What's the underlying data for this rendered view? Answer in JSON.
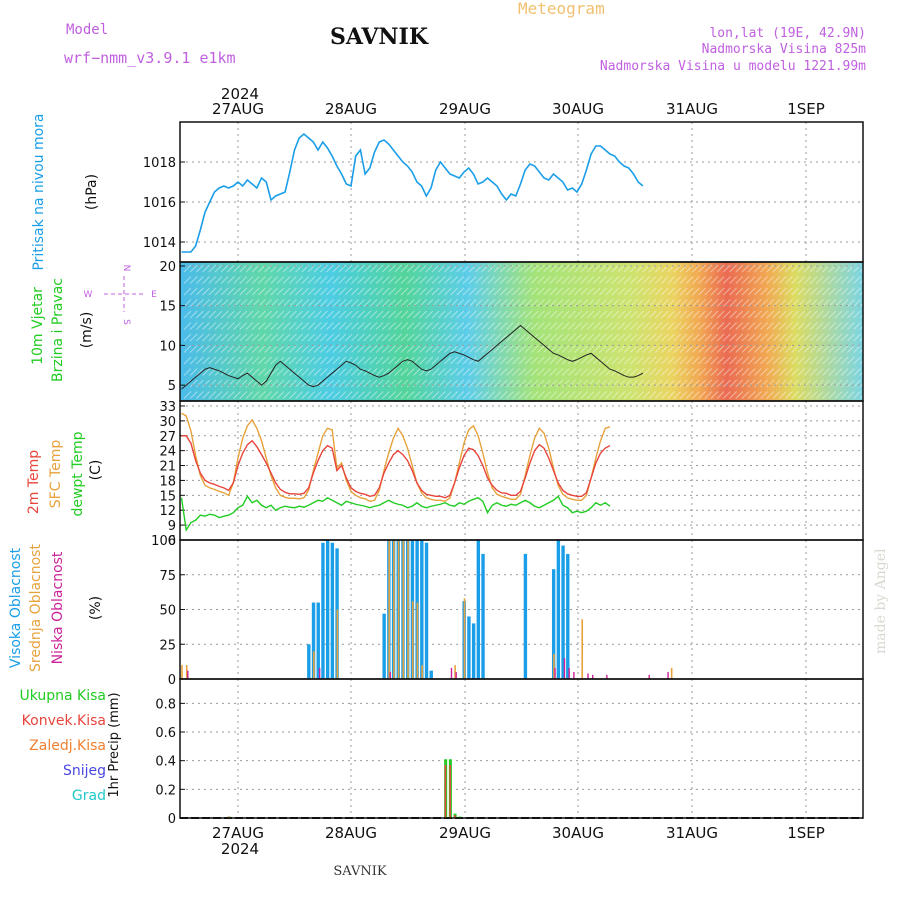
{
  "header": {
    "title": "SAVNIK",
    "subtitle": "Meteogram",
    "model_label": "Model",
    "model_name": "wrf−nmm_v3.9.1  e1km",
    "lonlat": "lon,lat (19E, 42.9N)",
    "elevation": "Nadmorska Visina 825m",
    "model_elevation": "Nadmorska Visina u modelu 1221.99m",
    "footer_name": "SAVNIK",
    "watermark": "made by Angel"
  },
  "time_axis": {
    "year": "2024",
    "days": [
      "27AUG",
      "28AUG",
      "29AUG",
      "30AUG",
      "31AUG",
      "1SEP"
    ],
    "hours_per_day": 24,
    "start_hour_offset": -12
  },
  "colors": {
    "pressure": "#1a9ee8",
    "temp2m": "#e8453c",
    "sfc_temp": "#e8a23c",
    "dewpoint": "#22cc22",
    "cloud_high": "#1a9ee8",
    "cloud_mid": "#e8a23c",
    "cloud_low": "#cc2299",
    "precip_total": "#22cc22",
    "precip_conv": "#e8453c",
    "precip_frz": "#f07f30",
    "snow": "#4848e0",
    "hail": "#22c8c8",
    "label_magenta": "#c060e0",
    "label_orange": "#f0c070"
  },
  "chart_data": [
    {
      "type": "line",
      "panel": "pressure",
      "ylabel_main": "Pritisak na nivou mora",
      "ylabel_unit": "(hPa)",
      "ylim": [
        1013,
        1020
      ],
      "yticks": [
        1014,
        1016,
        1018
      ],
      "grid": true,
      "series": [
        {
          "values": [
            1013.5,
            1013.5,
            1013.5,
            1013.8,
            1014.6,
            1015.5,
            1016.0,
            1016.5,
            1016.7,
            1016.8,
            1016.7,
            1016.8,
            1017.0,
            1016.8,
            1017.1,
            1016.9,
            1016.7,
            1017.2,
            1017.0,
            1016.1,
            1016.3,
            1016.4,
            1016.5,
            1017.5,
            1018.6,
            1019.2,
            1019.4,
            1019.2,
            1019.0,
            1018.6,
            1019.0,
            1018.7,
            1018.3,
            1017.8,
            1017.4,
            1016.9,
            1016.8,
            1018.3,
            1018.6,
            1017.4,
            1017.7,
            1018.5,
            1019.0,
            1019.1,
            1018.9,
            1018.6,
            1018.3,
            1018.0,
            1017.8,
            1017.5,
            1017.0,
            1016.8,
            1016.3,
            1016.7,
            1017.6,
            1018.0,
            1017.7,
            1017.4,
            1017.3,
            1017.2,
            1017.5,
            1017.7,
            1017.4,
            1016.9,
            1017.0,
            1017.2,
            1017.0,
            1016.8,
            1016.4,
            1016.1,
            1016.4,
            1016.3,
            1016.9,
            1017.6,
            1017.9,
            1017.8,
            1017.5,
            1017.2,
            1017.1,
            1017.4,
            1017.2,
            1017.0,
            1016.6,
            1016.7,
            1016.5,
            1016.9,
            1017.6,
            1018.4,
            1018.8,
            1018.8,
            1018.6,
            1018.4,
            1018.3,
            1018.0,
            1017.8,
            1017.7,
            1017.4,
            1017.0,
            1016.8
          ]
        }
      ]
    },
    {
      "type": "line",
      "panel": "wind",
      "ylabel_main": "10m Vjetar",
      "ylabel_main2": "Brzina i Pravac",
      "ylabel_unit": "(m/s)",
      "compass_labels": [
        "N",
        "E",
        "S",
        "W"
      ],
      "ylim": [
        3,
        20.5
      ],
      "yticks": [
        5,
        10,
        15,
        20
      ],
      "grid": true,
      "series": [
        {
          "name": "speed",
          "values": [
            4.5,
            5.0,
            5.5,
            6.0,
            6.5,
            7.0,
            7.2,
            7.0,
            6.8,
            6.5,
            6.2,
            6.0,
            5.8,
            6.2,
            6.5,
            6.0,
            5.5,
            5.0,
            5.5,
            6.5,
            7.5,
            8.0,
            7.5,
            7.0,
            6.5,
            6.0,
            5.5,
            5.0,
            4.8,
            5.0,
            5.5,
            6.0,
            6.5,
            7.0,
            7.5,
            8.0,
            7.8,
            7.5,
            7.0,
            6.8,
            6.5,
            6.2,
            6.0,
            6.2,
            6.5,
            7.0,
            7.5,
            8.0,
            8.2,
            8.0,
            7.5,
            7.0,
            6.8,
            7.0,
            7.5,
            8.0,
            8.5,
            9.0,
            9.2,
            9.0,
            8.8,
            8.5,
            8.2,
            8.0,
            8.5,
            9.0,
            9.5,
            10.0,
            10.5,
            11.0,
            11.5,
            12.0,
            12.5,
            12.0,
            11.5,
            11.0,
            10.5,
            10.0,
            9.5,
            9.0,
            8.8,
            8.5,
            8.2,
            8.0,
            8.2,
            8.5,
            8.8,
            9.0,
            8.5,
            8.0,
            7.5,
            7.0,
            6.8,
            6.5,
            6.2,
            6.0,
            6.0,
            6.2,
            6.5
          ]
        }
      ]
    },
    {
      "type": "line",
      "panel": "temperature",
      "ylabel_main": "2m Temp",
      "ylabel_main2": "SFC Temp",
      "ylabel_main3": "dewpt Temp",
      "ylabel_unit": "(C)",
      "ylim": [
        6,
        34
      ],
      "yticks": [
        6,
        9,
        12,
        15,
        18,
        21,
        24,
        27,
        30,
        33
      ],
      "grid": true,
      "series": [
        {
          "name": "2m Temp",
          "values": [
            27.0,
            27.0,
            25.5,
            22.0,
            19.5,
            18.0,
            17.5,
            17.2,
            16.8,
            16.5,
            16.0,
            17.5,
            21.0,
            23.5,
            25.2,
            26.0,
            24.8,
            23.2,
            21.5,
            19.5,
            17.5,
            16.2,
            15.6,
            15.3,
            15.3,
            15.2,
            15.4,
            16.5,
            19.5,
            22.0,
            24.0,
            25.0,
            24.5,
            20.0,
            21.0,
            18.5,
            16.5,
            15.8,
            15.4,
            15.2,
            14.8,
            15.0,
            16.5,
            19.5,
            21.5,
            23.2,
            24.0,
            23.2,
            22.0,
            20.0,
            17.5,
            16.0,
            15.2,
            15.0,
            14.8,
            14.8,
            14.5,
            15.0,
            17.5,
            20.5,
            23.0,
            24.5,
            24.2,
            23.0,
            21.0,
            18.5,
            17.0,
            16.0,
            15.5,
            15.4,
            15.0,
            15.0,
            15.8,
            18.5,
            21.5,
            24.0,
            25.2,
            24.5,
            22.5,
            20.0,
            17.5,
            16.0,
            15.3,
            15.0,
            14.8,
            14.8,
            15.5,
            18.5,
            21.5,
            23.5,
            24.5,
            25.0
          ]
        },
        {
          "name": "SFC Temp",
          "values": [
            31.5,
            31.0,
            28.0,
            23.0,
            19.0,
            17.0,
            16.5,
            16.2,
            15.8,
            15.5,
            15.0,
            17.5,
            22.5,
            26.5,
            29.0,
            30.2,
            28.5,
            26.0,
            22.5,
            19.0,
            16.5,
            15.0,
            14.6,
            14.4,
            14.4,
            14.3,
            14.5,
            16.0,
            20.0,
            23.5,
            27.0,
            28.5,
            28.2,
            20.5,
            21.5,
            18.0,
            15.8,
            15.0,
            14.5,
            14.3,
            13.8,
            14.0,
            16.0,
            20.0,
            23.5,
            26.5,
            28.5,
            27.0,
            24.5,
            21.0,
            17.5,
            15.5,
            14.5,
            14.2,
            14.0,
            14.0,
            13.8,
            14.5,
            17.5,
            21.5,
            25.5,
            28.2,
            29.0,
            27.0,
            23.5,
            19.5,
            16.5,
            15.2,
            14.8,
            14.5,
            14.2,
            14.2,
            15.2,
            19.0,
            23.0,
            26.5,
            28.5,
            27.5,
            24.5,
            20.5,
            17.0,
            15.2,
            14.5,
            14.2,
            14.0,
            14.0,
            15.0,
            18.5,
            22.5,
            26.0,
            28.5,
            28.8
          ]
        },
        {
          "name": "dewpt Temp",
          "values": [
            14.5,
            8.0,
            9.5,
            10.0,
            11.0,
            10.8,
            11.2,
            11.0,
            10.5,
            10.8,
            11.0,
            11.5,
            12.5,
            13.0,
            14.8,
            13.5,
            14.0,
            13.0,
            12.5,
            13.0,
            12.0,
            12.5,
            12.8,
            12.6,
            12.5,
            12.8,
            12.6,
            13.0,
            13.5,
            14.0,
            13.8,
            14.5,
            14.0,
            13.5,
            13.0,
            13.8,
            13.5,
            13.2,
            13.0,
            12.8,
            12.5,
            12.8,
            13.0,
            13.5,
            14.0,
            13.5,
            13.2,
            13.0,
            12.5,
            12.8,
            13.5,
            12.8,
            12.5,
            12.8,
            13.0,
            13.2,
            13.5,
            13.0,
            12.8,
            13.5,
            13.2,
            13.8,
            14.2,
            14.5,
            13.8,
            11.5,
            13.0,
            13.5,
            13.0,
            12.8,
            13.2,
            13.0,
            13.5,
            14.0,
            13.5,
            12.8,
            12.5,
            13.0,
            13.5,
            14.0,
            14.8,
            13.0,
            12.5,
            11.5,
            11.8,
            11.5,
            11.8,
            12.5,
            13.5,
            13.0,
            13.5,
            12.8
          ]
        }
      ]
    },
    {
      "type": "bar",
      "panel": "clouds",
      "ylabel_main": "Visoka Oblacnost",
      "ylabel_main2": "Srednja Oblacnost",
      "ylabel_main3": "Niska Oblacnost",
      "ylabel_unit": "(%)",
      "ylim": [
        0,
        100
      ],
      "yticks": [
        0,
        25,
        50,
        75,
        100
      ],
      "grid": true,
      "series": [
        {
          "name": "Visoka",
          "bars": [
            [
              27,
              25
            ],
            [
              28,
              55
            ],
            [
              29,
              55
            ],
            [
              30,
              98
            ],
            [
              31,
              100
            ],
            [
              32,
              98
            ],
            [
              33,
              94
            ],
            [
              43,
              47
            ],
            [
              44,
              100
            ],
            [
              45,
              100
            ],
            [
              46,
              100
            ],
            [
              47,
              100
            ],
            [
              48,
              100
            ],
            [
              49,
              100
            ],
            [
              50,
              100
            ],
            [
              51,
              100
            ],
            [
              52,
              98
            ],
            [
              53,
              6
            ],
            [
              60,
              56
            ],
            [
              61,
              45
            ],
            [
              62,
              40
            ],
            [
              63,
              100
            ],
            [
              64,
              90
            ],
            [
              73,
              90
            ],
            [
              79,
              79
            ],
            [
              80,
              100
            ],
            [
              81,
              96
            ],
            [
              82,
              90
            ]
          ]
        },
        {
          "name": "Srednja",
          "bars": [
            [
              0,
              10
            ],
            [
              1,
              10
            ],
            [
              28,
              20
            ],
            [
              33,
              50
            ],
            [
              44,
              100
            ],
            [
              45,
              100
            ],
            [
              46,
              100
            ],
            [
              47,
              100
            ],
            [
              48,
              100
            ],
            [
              49,
              56
            ],
            [
              50,
              55
            ],
            [
              51,
              10
            ],
            [
              58,
              10
            ],
            [
              60,
              58
            ],
            [
              79,
              18
            ],
            [
              85,
              43
            ],
            [
              104,
              8
            ]
          ]
        },
        {
          "name": "Niska",
          "bars": [
            [
              1,
              6
            ],
            [
              29,
              8
            ],
            [
              44,
              5
            ],
            [
              57,
              8
            ],
            [
              58,
              5
            ],
            [
              79,
              8
            ],
            [
              81,
              15
            ],
            [
              82,
              8
            ],
            [
              83,
              5
            ],
            [
              86,
              4
            ],
            [
              87,
              3
            ],
            [
              90,
              3
            ],
            [
              99,
              3
            ],
            [
              103,
              5
            ]
          ]
        }
      ]
    },
    {
      "type": "bar",
      "panel": "precip",
      "ylabel_main": "1hr Precip",
      "ylabel_unit": "(mm)",
      "legend": [
        "Ukupna  Kisa",
        "Konvek.Kisa",
        "Zaledj.Kisa",
        "Snijeg",
        "Grad"
      ],
      "ylim": [
        0,
        0.97
      ],
      "yticks": [
        0,
        0.2,
        0.4,
        0.6,
        0.8
      ],
      "grid": true,
      "series": [
        {
          "name": "Ukupna Kisa",
          "bars": [
            [
              10,
              0.01
            ],
            [
              56,
              0.41
            ],
            [
              57,
              0.41
            ],
            [
              58,
              0.03
            ],
            [
              59,
              0.01
            ]
          ]
        },
        {
          "name": "Konvek.Kisa",
          "bars": [
            [
              10,
              0.01
            ],
            [
              56,
              0.37
            ],
            [
              57,
              0.37
            ],
            [
              58,
              0.02
            ]
          ]
        }
      ]
    }
  ]
}
